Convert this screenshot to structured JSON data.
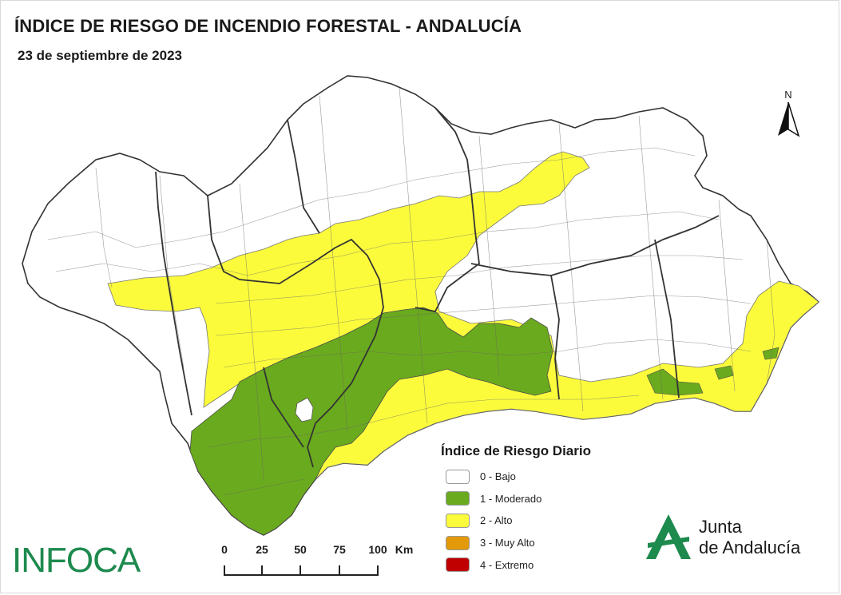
{
  "title": "ÍNDICE DE RIESGO DE INCENDIO FORESTAL - ANDALUCÍA",
  "subtitle": "23 de septiembre de 2023",
  "north_arrow": {
    "label": "N",
    "icon": "north-arrow-icon"
  },
  "legend": {
    "title": "Índice de Riesgo Diario",
    "items": [
      {
        "label": "0 - Bajo",
        "color": "#ffffff"
      },
      {
        "label": "1 - Moderado",
        "color": "#6aaa1e"
      },
      {
        "label": "2 - Alto",
        "color": "#fbfb3c"
      },
      {
        "label": "3 - Muy Alto",
        "color": "#e39a0a"
      },
      {
        "label": "4 - Extremo",
        "color": "#c00000"
      }
    ]
  },
  "scale_bar": {
    "ticks": [
      "0",
      "25",
      "50",
      "75",
      "100"
    ],
    "unit": "Km"
  },
  "logos": {
    "left": "INFOCA",
    "right_line1": "Junta",
    "right_line2": "de Andalucía",
    "brand_color": "#1d8a4e"
  },
  "colors": {
    "bajo": "#ffffff",
    "moderado": "#6aaa1e",
    "alto": "#fbfb3c",
    "border": "#555555",
    "province_border": "#333333"
  }
}
